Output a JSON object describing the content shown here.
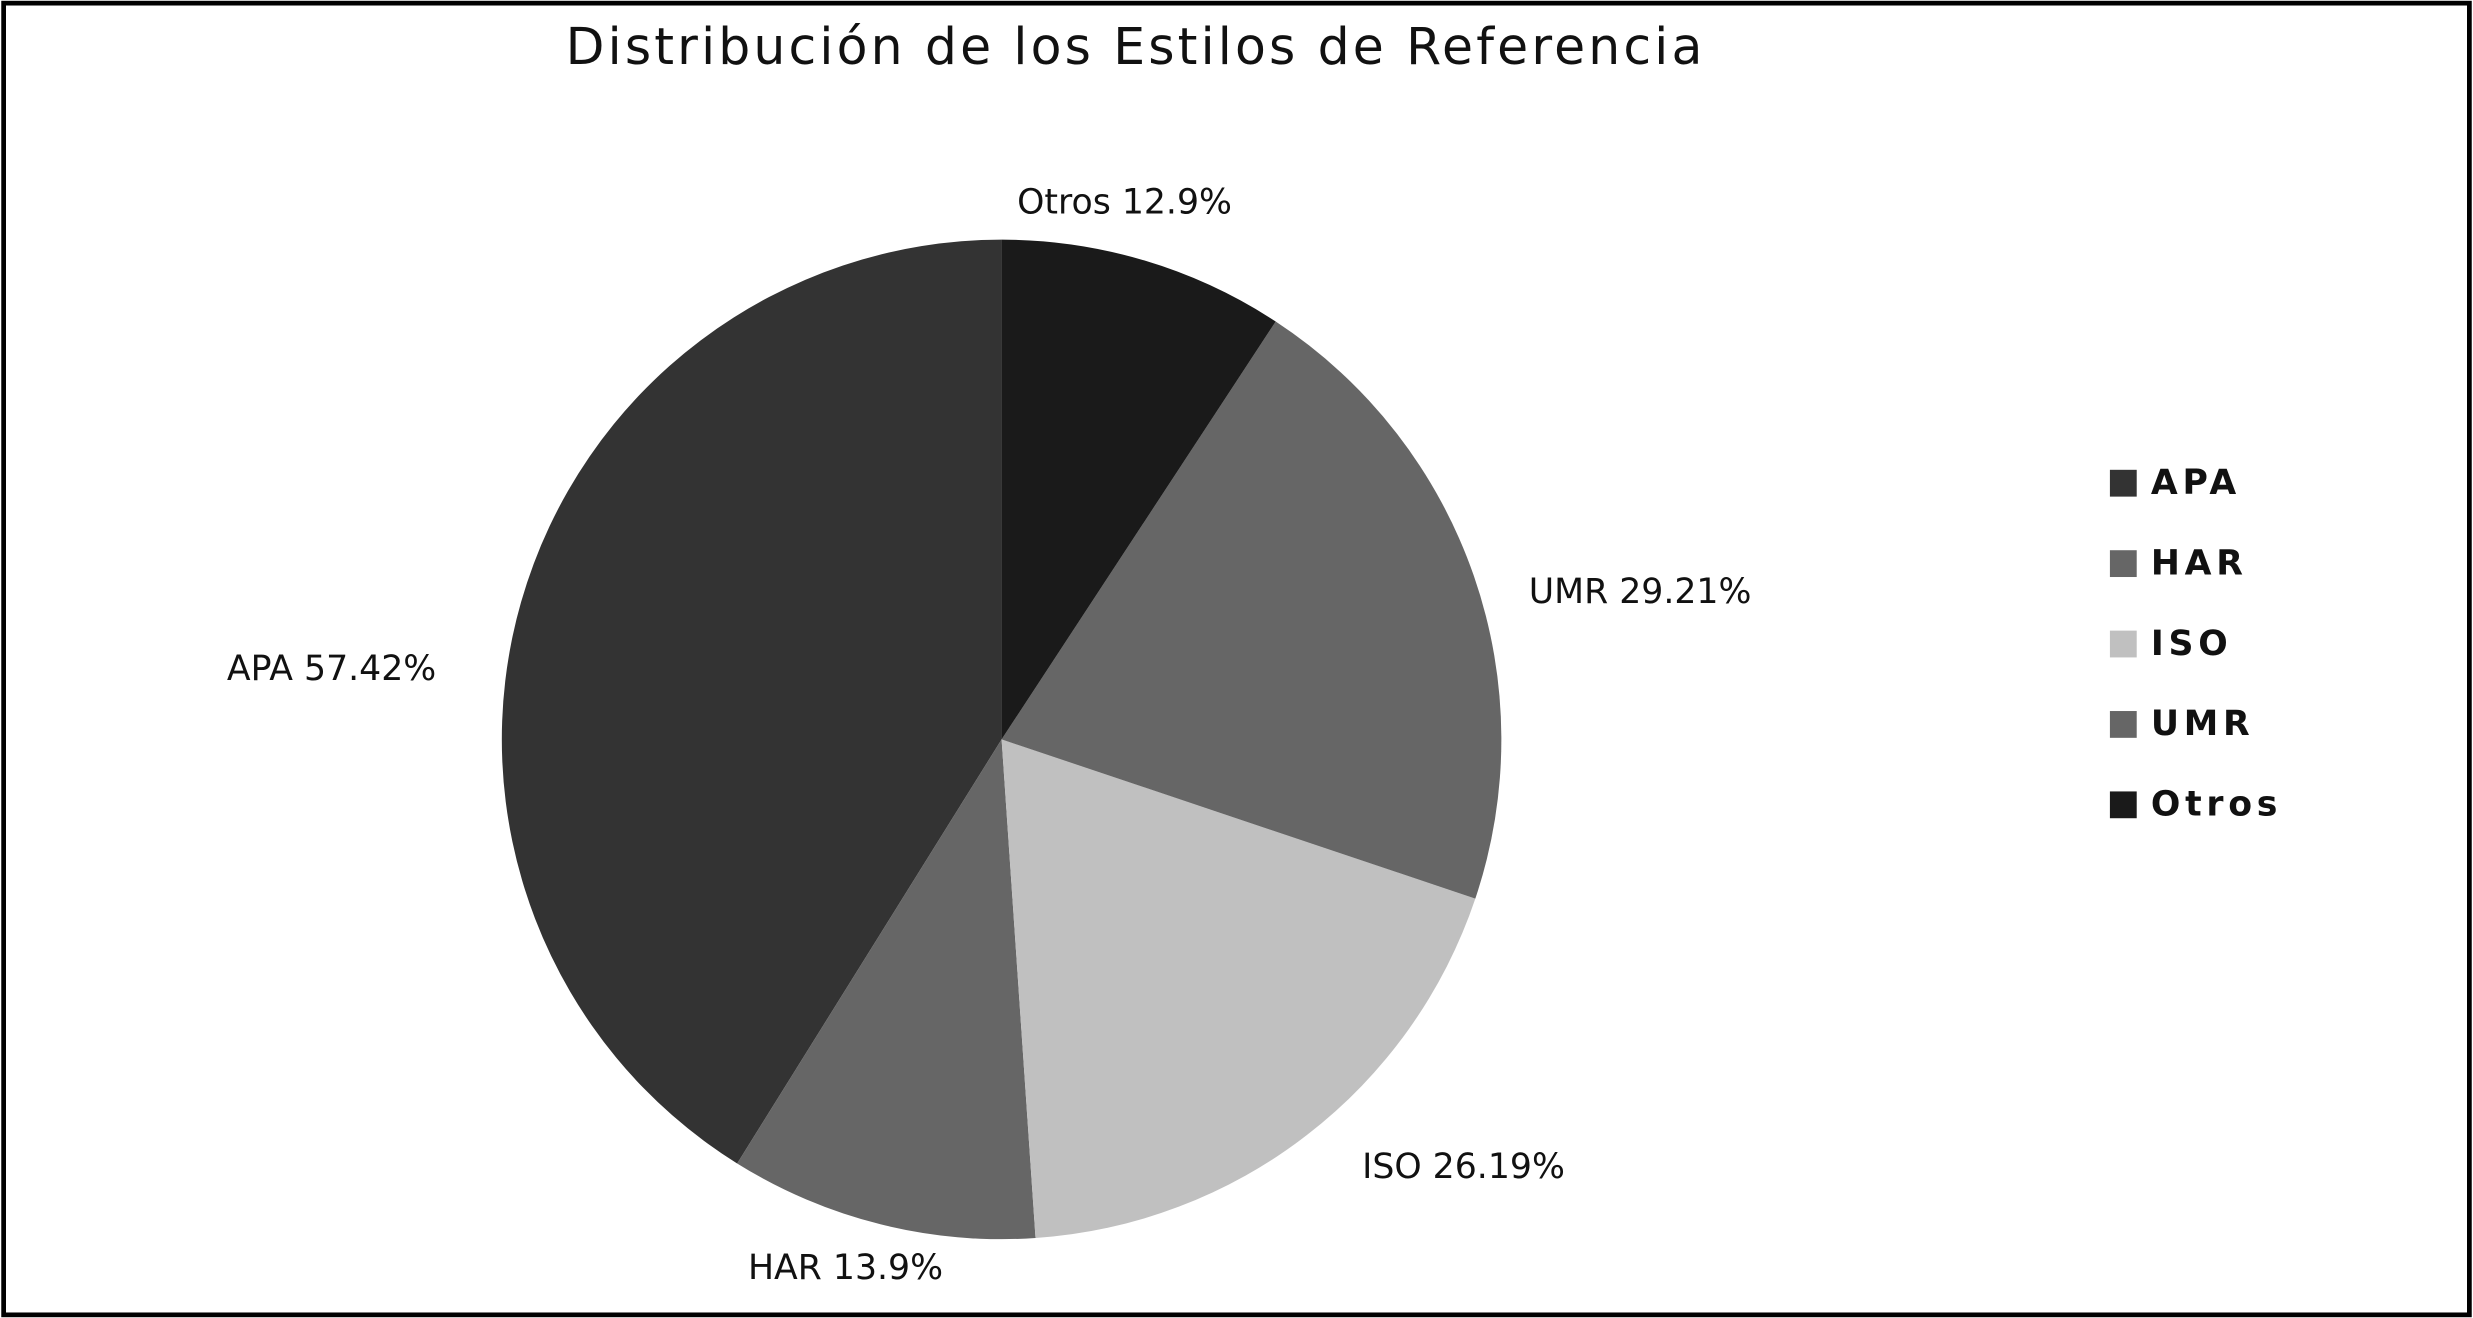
{
  "chart_data": {
    "type": "pie",
    "title": "Distribución de los Estilos de Referencia",
    "categories": [
      "APA",
      "HAR",
      "ISO",
      "UMR",
      "Otros"
    ],
    "values": [
      57.42,
      13.9,
      26.19,
      29.21,
      12.9
    ],
    "value_labels": [
      "APA 57.42%",
      "HAR 13.9%",
      "ISO 26.19%",
      "UMR 29.21%",
      "Otros 12.9%"
    ],
    "colors": [
      "#333333",
      "#666666",
      "#c0c0c0",
      "#666666",
      "#1a1a1a"
    ],
    "legend": "right"
  }
}
